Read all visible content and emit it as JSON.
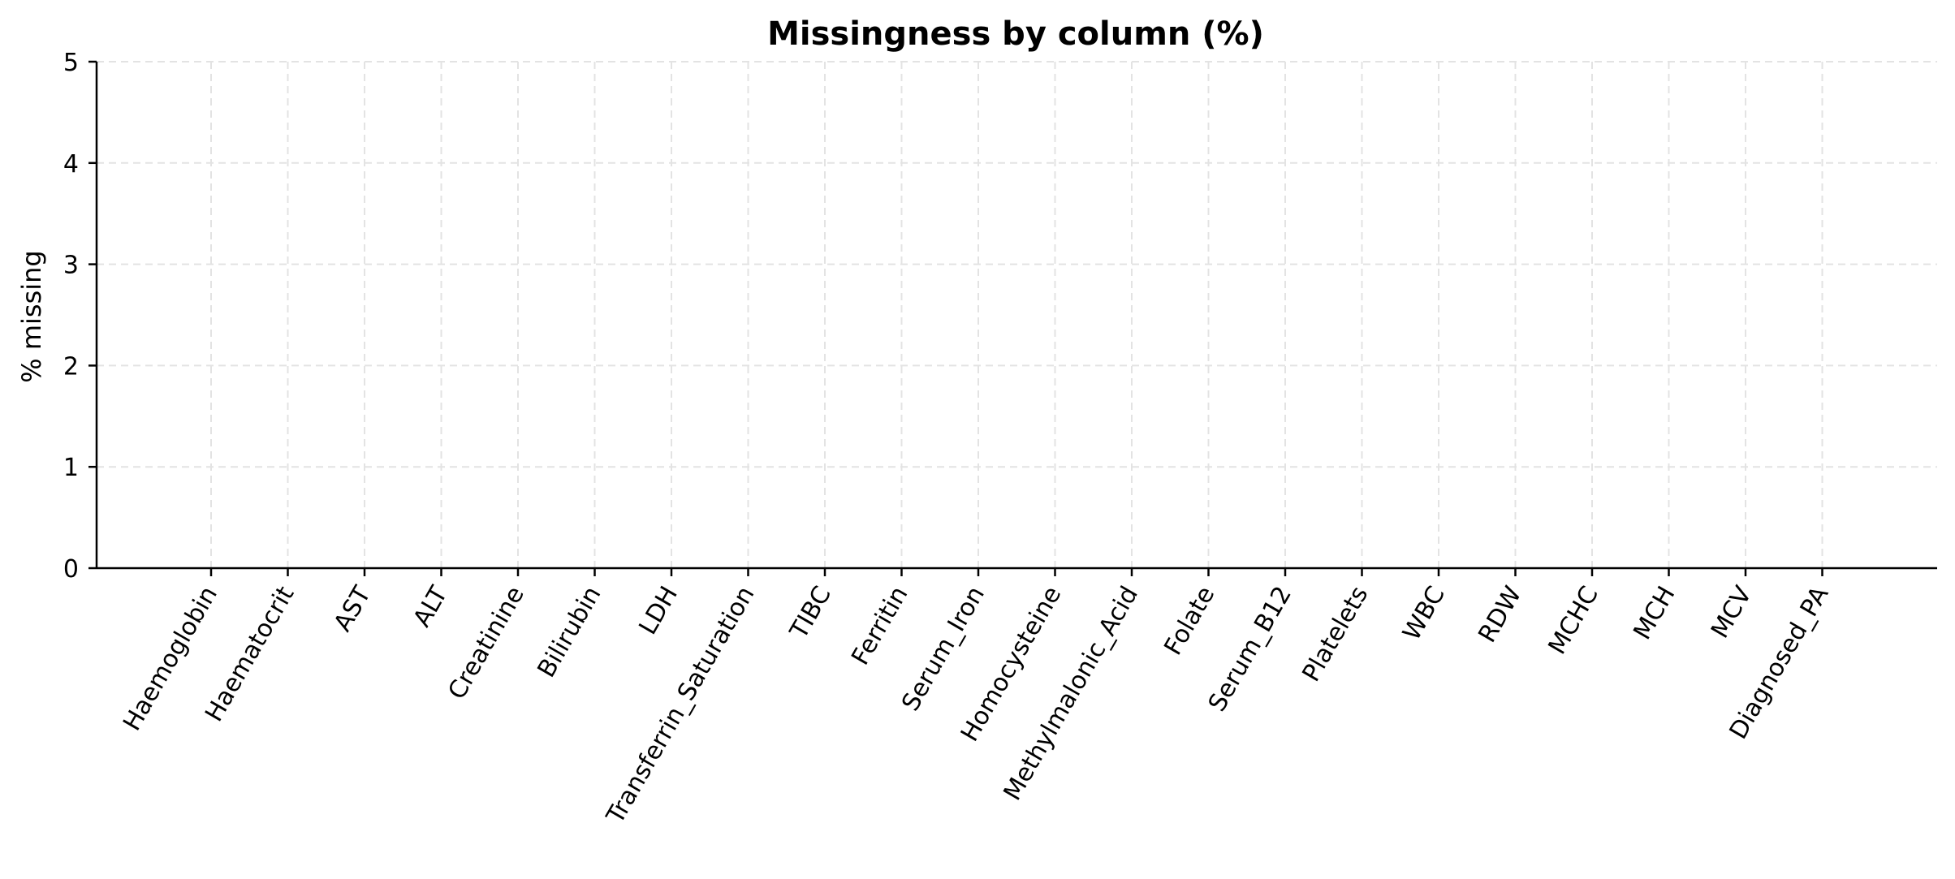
{
  "chart_data": {
    "type": "bar",
    "title": "Missingness by column (%)",
    "xlabel": "",
    "ylabel": "% missing",
    "ylim": [
      0,
      5
    ],
    "yticks": [
      0,
      1,
      2,
      3,
      4,
      5
    ],
    "grid": true,
    "categories": [
      "Haemoglobin",
      "Haematocrit",
      "AST",
      "ALT",
      "Creatinine",
      "Bilirubin",
      "LDH",
      "Transferrin_Saturation",
      "TIBC",
      "Ferritin",
      "Serum_Iron",
      "Homocysteine",
      "Methylmalonic_Acid",
      "Folate",
      "Serum_B12",
      "Platelets",
      "WBC",
      "RDW",
      "MCHC",
      "MCH",
      "MCV",
      "Diagnosed_PA"
    ],
    "values": [
      0,
      0,
      0,
      0,
      0,
      0,
      0,
      0,
      0,
      0,
      0,
      0,
      0,
      0,
      0,
      0,
      0,
      0,
      0,
      0,
      0,
      0
    ]
  }
}
